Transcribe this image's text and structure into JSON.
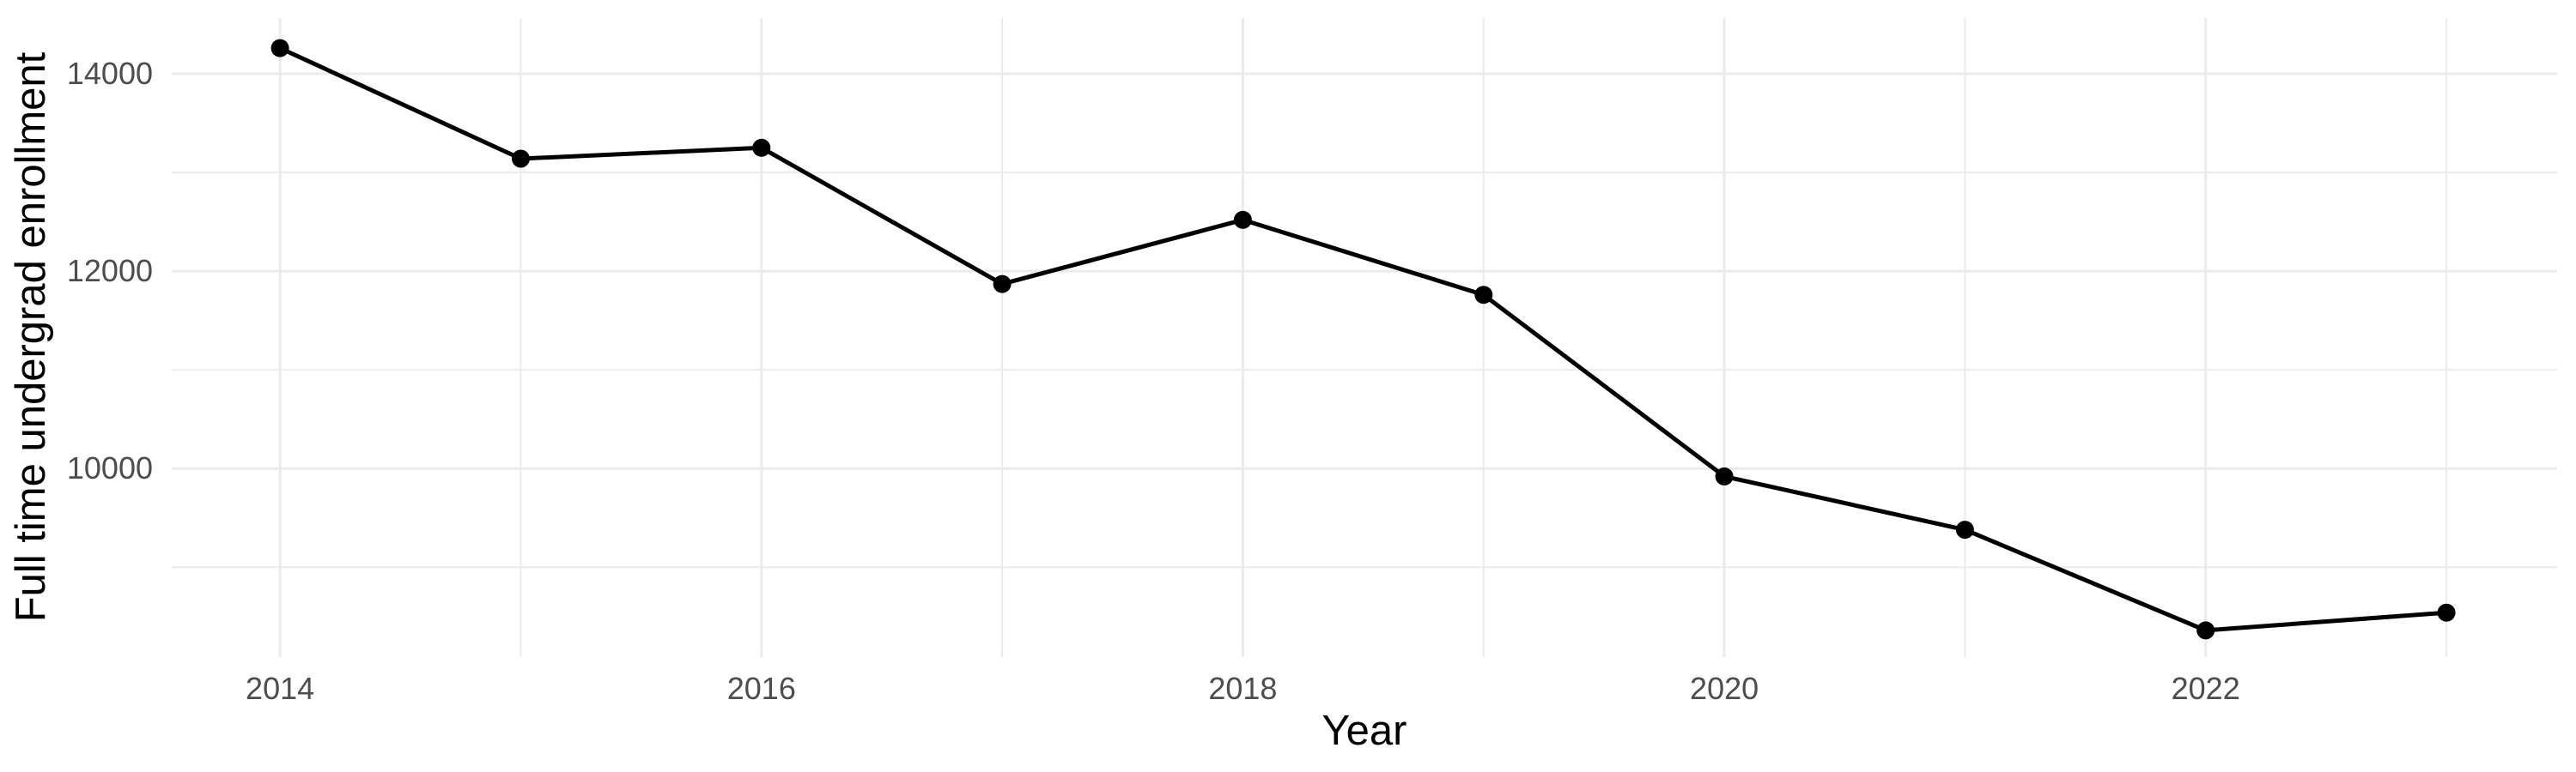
{
  "chart_data": {
    "type": "line",
    "title": "",
    "xlabel": "Year",
    "ylabel": "Full time undergrad enrollment",
    "x": [
      2014,
      2015,
      2016,
      2017,
      2018,
      2019,
      2020,
      2021,
      2022,
      2023
    ],
    "values": [
      14260,
      13140,
      13250,
      11870,
      12520,
      11760,
      9920,
      9380,
      8360,
      8540
    ],
    "series_name": "Full time undergrad enrollment",
    "x_ticks": [
      2014,
      2016,
      2018,
      2020,
      2022
    ],
    "x_tick_labels": [
      "2014",
      "2016",
      "2018",
      "2020",
      "2022"
    ],
    "x_minor_ticks": [
      2015,
      2017,
      2019,
      2021,
      2023
    ],
    "y_ticks": [
      10000,
      12000,
      14000
    ],
    "y_tick_labels": [
      "10000",
      "12000",
      "14000"
    ],
    "y_minor_ticks": [
      9000,
      11000,
      13000
    ],
    "xlim": [
      2013.55,
      2023.46
    ],
    "ylim": [
      8090,
      14565
    ],
    "grid": "major and minor gridlines, no axis lines, no legend",
    "legend_position": "none",
    "styles": {
      "background_color": "#ffffff",
      "grid_color": "#ebebeb",
      "line_color": "#000000",
      "point_color": "#000000",
      "tick_label_color": "#4d4d4d",
      "axis_title_color": "#000000"
    }
  }
}
